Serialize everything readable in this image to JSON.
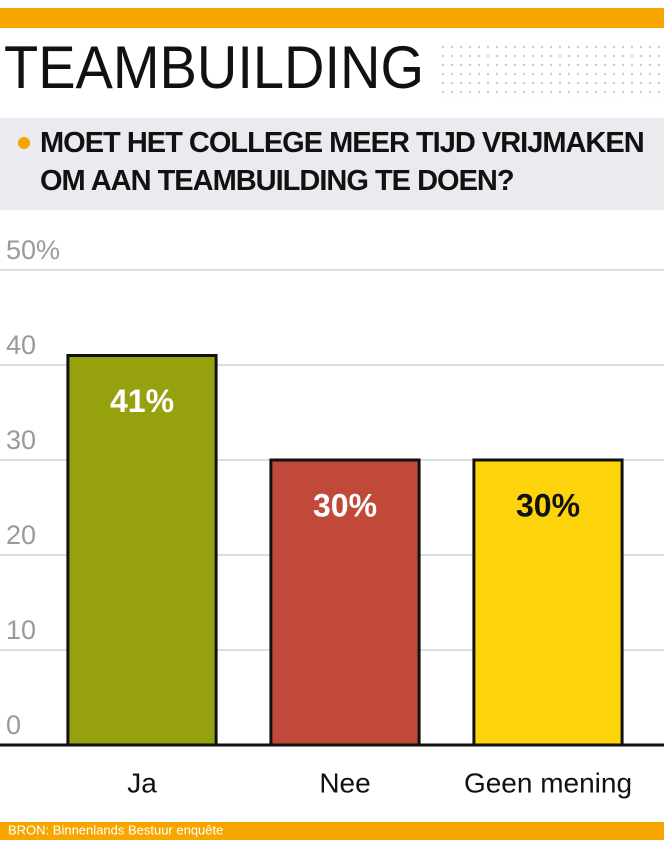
{
  "chart_data": {
    "type": "bar",
    "title": "TEAMBUILDING",
    "subtitle": "MOET HET COLLEGE MEER TIJD VRIJMAKEN OM AAN TEAMBUILDING TE DOEN?",
    "categories": [
      "Ja",
      "Nee",
      "Geen mening"
    ],
    "values": [
      41,
      30,
      30
    ],
    "value_labels": [
      "41%",
      "30%",
      "30%"
    ],
    "colors": [
      "#95a10d",
      "#c0493a",
      "#fdd30b"
    ],
    "ylim": [
      0,
      50
    ],
    "yticks": [
      0,
      10,
      20,
      30,
      40,
      {
        "value": 50,
        "label": "50%"
      }
    ],
    "grid": true,
    "source": "BRON: Binnenlands Bestuur enquête"
  }
}
